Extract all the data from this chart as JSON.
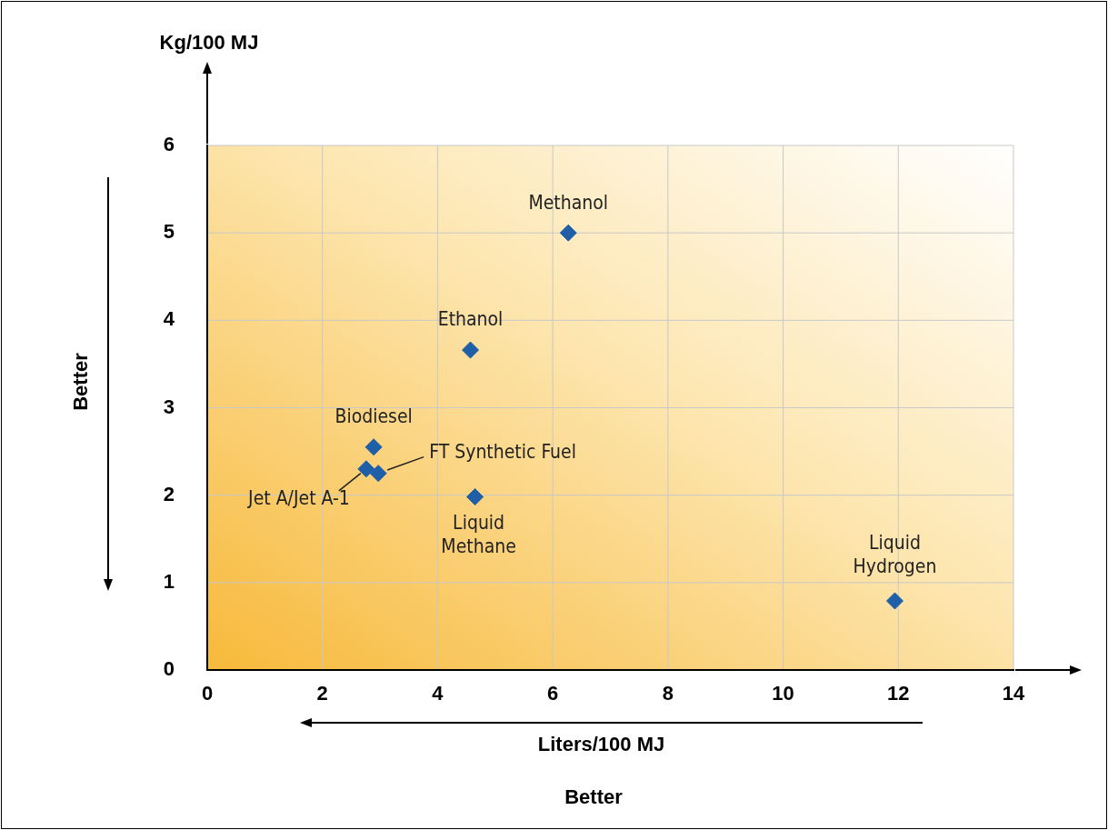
{
  "chart_data": {
    "type": "scatter",
    "xlabel": "Liters/100 MJ",
    "ylabel": "Kg/100 MJ",
    "series": [
      {
        "color": "#1f5fa8",
        "x": [
          6.27,
          4.57,
          2.89,
          2.76,
          2.97,
          4.65,
          11.94
        ],
        "values": [
          5.0,
          3.66,
          2.55,
          2.3,
          2.25,
          1.98,
          0.79
        ]
      }
    ],
    "xlim": [
      0,
      14
    ],
    "ylim": [
      0,
      6
    ],
    "xticks": [
      0,
      2,
      4,
      6,
      8,
      10,
      12,
      14
    ],
    "yticks": [
      0,
      1,
      2,
      3,
      4,
      5,
      6
    ],
    "grid": true,
    "legend": false,
    "marker": "diamond",
    "annotations": [
      {
        "text": "Methanol",
        "x": 6.27,
        "y": 5.0
      },
      {
        "text": "Ethanol",
        "x": 4.57,
        "y": 3.66
      },
      {
        "text": "Biodiesel",
        "x": 2.89,
        "y": 2.55
      },
      {
        "text": "Jet A/Jet A-1",
        "x": 2.76,
        "y": 2.3
      },
      {
        "text": "FT Synthetic Fuel",
        "x": 2.97,
        "y": 2.25
      },
      {
        "text": "Liquid\nMethane",
        "x": 4.65,
        "y": 1.98
      },
      {
        "text": "Liquid\nHydrogen",
        "x": 11.94,
        "y": 0.79
      },
      "Better",
      "Better"
    ]
  }
}
